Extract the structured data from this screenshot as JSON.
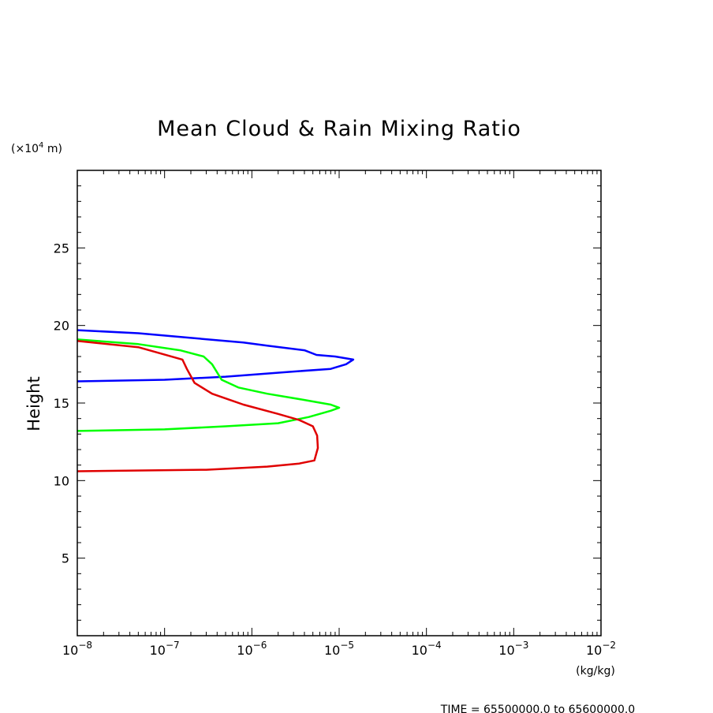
{
  "chart_data": {
    "type": "line",
    "title": "Mean Cloud & Rain Mixing Ratio",
    "ylabel": "Height",
    "y_unit_prefix": "(×10",
    "y_unit_exp": "4",
    "y_unit_suffix": " m)",
    "x_unit": "(kg/kg)",
    "xscale": "log",
    "xlim": [
      1e-08,
      0.01
    ],
    "ylim": [
      0,
      30
    ],
    "x_ticks": [
      {
        "base": "10",
        "exp": "−8"
      },
      {
        "base": "10",
        "exp": "−7"
      },
      {
        "base": "10",
        "exp": "−6"
      },
      {
        "base": "10",
        "exp": "−5"
      },
      {
        "base": "10",
        "exp": "−4"
      },
      {
        "base": "10",
        "exp": "−3"
      },
      {
        "base": "10",
        "exp": "−2"
      }
    ],
    "y_ticks": [
      "5",
      "10",
      "15",
      "20",
      "25"
    ],
    "grid": false,
    "series": [
      {
        "color": "#0000ff",
        "x": [
          1e-08,
          5e-08,
          2e-07,
          8e-07,
          1.5e-06,
          4e-06,
          5.5e-06,
          9e-06,
          1.45e-05,
          1.2e-05,
          8e-06,
          2.5e-06,
          5e-07,
          1e-07,
          1e-08
        ],
        "y": [
          19.7,
          19.5,
          19.2,
          18.9,
          18.7,
          18.4,
          18.1,
          18.0,
          17.8,
          17.5,
          17.2,
          17.0,
          16.7,
          16.5,
          16.4
        ]
      },
      {
        "color": "#00ff00",
        "x": [
          1e-08,
          5e-08,
          1.5e-07,
          2.8e-07,
          3.5e-07,
          4.5e-07,
          7e-07,
          1.5e-06,
          4e-06,
          8e-06,
          1e-05,
          8e-06,
          4.5e-06,
          2e-06,
          5e-07,
          1e-07,
          1e-08
        ],
        "y": [
          19.1,
          18.8,
          18.4,
          18.0,
          17.5,
          16.5,
          16.0,
          15.6,
          15.2,
          14.9,
          14.7,
          14.5,
          14.1,
          13.7,
          13.5,
          13.3,
          13.2
        ],
        "labels": []
      },
      {
        "color": "#e00000",
        "x": [
          1e-08,
          5e-08,
          1.6e-07,
          1.8e-07,
          2.2e-07,
          3.5e-07,
          8e-07,
          2e-06,
          3.5e-06,
          5e-06,
          5.6e-06,
          5.7e-06,
          5.2e-06,
          3.5e-06,
          1.5e-06,
          3e-07,
          1e-08
        ],
        "y": [
          19.0,
          18.6,
          17.8,
          17.2,
          16.3,
          15.6,
          14.9,
          14.3,
          13.9,
          13.5,
          12.9,
          12.1,
          11.3,
          11.1,
          10.9,
          10.7,
          10.6
        ]
      }
    ],
    "footer": "TIME = 65500000.0 to 65600000.0"
  }
}
